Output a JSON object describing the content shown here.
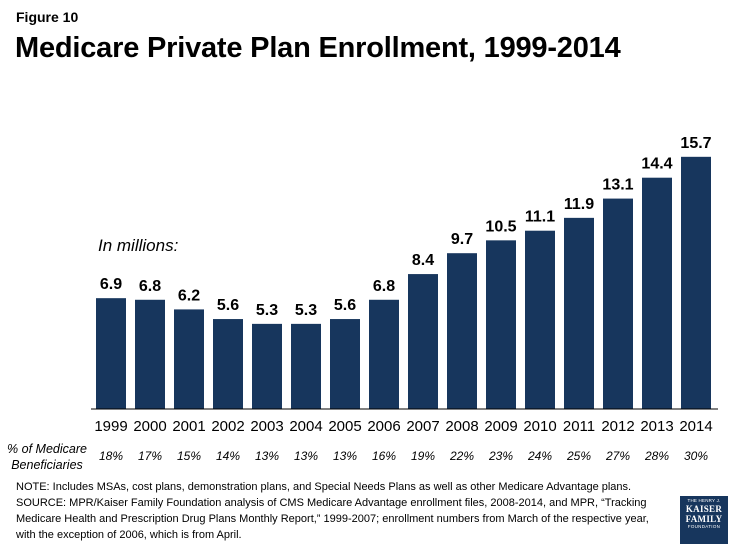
{
  "figure_label": "Figure 10",
  "chart_data": {
    "type": "bar",
    "title": "Medicare Private Plan Enrollment, 1999-2014",
    "unit_label": "In millions:",
    "categories": [
      "1999",
      "2000",
      "2001",
      "2002",
      "2003",
      "2004",
      "2005",
      "2006",
      "2007",
      "2008",
      "2009",
      "2010",
      "2011",
      "2012",
      "2013",
      "2014"
    ],
    "values": [
      6.9,
      6.8,
      6.2,
      5.6,
      5.3,
      5.3,
      5.6,
      6.8,
      8.4,
      9.7,
      10.5,
      11.1,
      11.9,
      13.1,
      14.4,
      15.7
    ],
    "value_labels": [
      "6.9",
      "6.8",
      "6.2",
      "5.6",
      "5.3",
      "5.3",
      "5.6",
      "6.8",
      "8.4",
      "9.7",
      "10.5",
      "11.1",
      "11.9",
      "13.1",
      "14.4",
      "15.7"
    ],
    "ylim": [
      0,
      16
    ],
    "bar_color": "#17365d",
    "grid": false,
    "secondary_row": {
      "label_line1": "% of Medicare",
      "label_line2": "Beneficiaries",
      "values": [
        "18%",
        "17%",
        "15%",
        "14%",
        "13%",
        "13%",
        "13%",
        "16%",
        "19%",
        "22%",
        "23%",
        "24%",
        "25%",
        "27%",
        "28%",
        "30%"
      ]
    }
  },
  "notes": {
    "line1": "NOTE:  Includes MSAs, cost plans, demonstration plans, and Special Needs Plans as well as other Medicare Advantage plans.",
    "line2": "SOURCE:  MPR/Kaiser Family Foundation analysis of CMS Medicare Advantage enrollment files, 2008-2014, and MPR, “Tracking",
    "line3": "Medicare Health and Prescription Drug Plans Monthly Report,” 1999-2007; enrollment numbers from March of the respective year,",
    "line4": "with the exception of 2006, which is from April."
  },
  "logo": {
    "line1": "THE HENRY J.",
    "line2": "KAISER",
    "line3": "FAMILY",
    "line4": "FOUNDATION"
  }
}
